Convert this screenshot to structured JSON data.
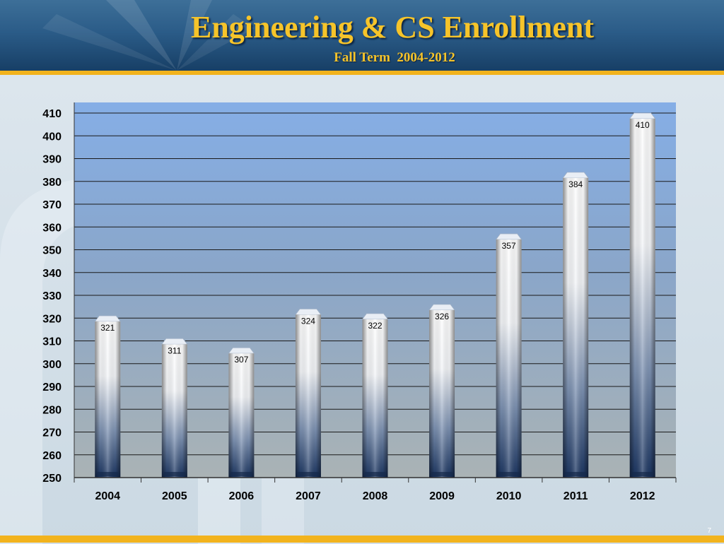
{
  "header": {
    "title": "Engineering & CS Enrollment",
    "subtitle": "Fall Term  2004-2012"
  },
  "footer": {
    "page_number": "7"
  },
  "colors": {
    "title_gold": "#f6c42a",
    "header_blue": "#2b5c88",
    "stripe_gold": "#f2b31d",
    "plot_top": "#85aee6",
    "plot_bottom": "#a8b2b4",
    "bar_dark": "#1b3561"
  },
  "chart_data": {
    "type": "bar",
    "title": "",
    "xlabel": "",
    "ylabel": "",
    "categories": [
      "2004",
      "2005",
      "2006",
      "2007",
      "2008",
      "2009",
      "2010",
      "2011",
      "2012"
    ],
    "values": [
      321,
      311,
      307,
      324,
      322,
      326,
      357,
      384,
      410
    ],
    "data_labels": [
      "321",
      "311",
      "307",
      "324",
      "322",
      "326",
      "357",
      "384",
      "410"
    ],
    "ylim": [
      250,
      410
    ],
    "yticks": [
      "250",
      "260",
      "270",
      "280",
      "290",
      "300",
      "310",
      "320",
      "330",
      "340",
      "350",
      "360",
      "370",
      "380",
      "390",
      "400",
      "410"
    ],
    "grid": true,
    "legend": "none",
    "bar_style": "3D cylinder, white-to-navy gradient"
  }
}
